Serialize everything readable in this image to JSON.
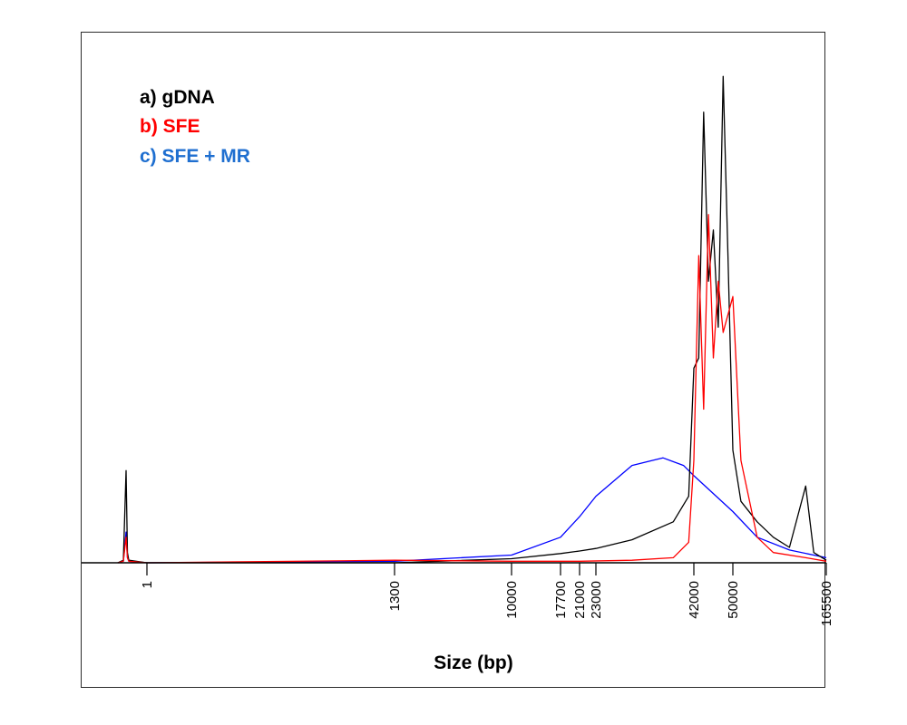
{
  "chart_data": {
    "type": "line",
    "xlabel": "Size (bp)",
    "ylabel": "",
    "x_ticks": [
      "1",
      "1300",
      "10000",
      "17700",
      "21000",
      "23000",
      "42000",
      "50000",
      "165500"
    ],
    "grid": false,
    "legend_position": "top-left",
    "series": [
      {
        "name": "a) gDNA",
        "color": "#000000",
        "points": [
          [
            "0.5",
            0
          ],
          [
            "0.7",
            0.5
          ],
          [
            "0.8",
            18
          ],
          [
            "0.85",
            2
          ],
          [
            "0.9",
            0.5
          ],
          [
            "1",
            0
          ],
          [
            "1300",
            0
          ],
          [
            "10000",
            0.8
          ],
          [
            "17700",
            1.8
          ],
          [
            "21000",
            2.3
          ],
          [
            "23000",
            2.8
          ],
          [
            "30000",
            4.5
          ],
          [
            "38000",
            8
          ],
          [
            "41000",
            13
          ],
          [
            "42000",
            38
          ],
          [
            "43000",
            40
          ],
          [
            "44000",
            88
          ],
          [
            "45000",
            55
          ],
          [
            "46000",
            65
          ],
          [
            "47000",
            46
          ],
          [
            "48000",
            95
          ],
          [
            "49000",
            60
          ],
          [
            "50000",
            22
          ],
          [
            "60000",
            12
          ],
          [
            "80000",
            8
          ],
          [
            "100000",
            5
          ],
          [
            "120000",
            3
          ],
          [
            "140000",
            15
          ],
          [
            "150000",
            2
          ],
          [
            "165500",
            0.5
          ]
        ]
      },
      {
        "name": "b) SFE",
        "color": "#ff0000",
        "points": [
          [
            "0.5",
            0
          ],
          [
            "0.7",
            0.3
          ],
          [
            "0.8",
            5
          ],
          [
            "0.85",
            1
          ],
          [
            "0.9",
            0.3
          ],
          [
            "1",
            0
          ],
          [
            "1300",
            0.5
          ],
          [
            "10000",
            0.3
          ],
          [
            "21000",
            0.3
          ],
          [
            "30000",
            0.5
          ],
          [
            "38000",
            1
          ],
          [
            "41000",
            4
          ],
          [
            "42000",
            20
          ],
          [
            "43000",
            60
          ],
          [
            "44000",
            30
          ],
          [
            "45000",
            68
          ],
          [
            "46000",
            40
          ],
          [
            "47000",
            55
          ],
          [
            "48000",
            45
          ],
          [
            "50000",
            52
          ],
          [
            "60000",
            20
          ],
          [
            "80000",
            5
          ],
          [
            "100000",
            2
          ],
          [
            "140000",
            1
          ],
          [
            "165500",
            0.3
          ]
        ]
      },
      {
        "name": "c) SFE + MR",
        "color": "#0000ff",
        "points": [
          [
            "0.5",
            0
          ],
          [
            "0.7",
            0.3
          ],
          [
            "0.8",
            6
          ],
          [
            "0.85",
            1
          ],
          [
            "0.9",
            0.3
          ],
          [
            "1",
            0
          ],
          [
            "1300",
            0.3
          ],
          [
            "10000",
            1.5
          ],
          [
            "17700",
            5
          ],
          [
            "21000",
            9
          ],
          [
            "23000",
            13
          ],
          [
            "30000",
            19
          ],
          [
            "36000",
            20.5
          ],
          [
            "40000",
            19
          ],
          [
            "42000",
            17
          ],
          [
            "50000",
            10
          ],
          [
            "80000",
            5
          ],
          [
            "120000",
            2.5
          ],
          [
            "165500",
            1
          ]
        ]
      }
    ]
  }
}
